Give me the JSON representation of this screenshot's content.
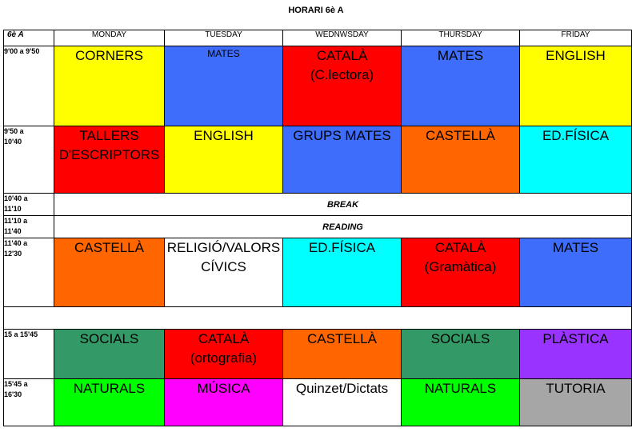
{
  "title": "HORARI 6è A",
  "class_label": "6è A",
  "days": [
    "MONDAY",
    "TUESDAY",
    "WEDNWSDAY",
    "THURSDAY",
    "FRIDAY"
  ],
  "colors": {
    "yellow": "#ffff00",
    "blue": "#3f6dfb",
    "red": "#ff0000",
    "orange": "#ff6600",
    "cyan": "#00ffff",
    "white": "#ffffff",
    "green": "#339966",
    "purple": "#9933ff",
    "lime": "#00ff00",
    "magenta": "#ff00ff",
    "gray": "#a6a6a6"
  },
  "rows": [
    {
      "time_top": "9'00 a  9'50",
      "time_bottom": "",
      "cells": [
        {
          "line1": "CORNERS",
          "line2": "",
          "color": "yellow"
        },
        {
          "line1": "MATES",
          "line2": "",
          "color": "blue",
          "small": true
        },
        {
          "line1": "CATALÀ",
          "line2": "(C.lectora)",
          "color": "red"
        },
        {
          "line1": "MATES",
          "line2": "",
          "color": "blue"
        },
        {
          "line1": "ENGLISH",
          "line2": "",
          "color": "yellow"
        }
      ]
    },
    {
      "time_top": "9'50 a",
      "time_bottom": "10'40",
      "cells": [
        {
          "line1": "TALLERS",
          "line2": "D'ESCRIPTORS",
          "color": "red"
        },
        {
          "line1": "ENGLISH",
          "line2": "",
          "color": "yellow"
        },
        {
          "line1": "GRUPS MATES",
          "line2": "",
          "color": "blue"
        },
        {
          "line1": "CASTELLÀ",
          "line2": "",
          "color": "orange"
        },
        {
          "line1": "ED.FÍSICA",
          "line2": "",
          "color": "cyan"
        }
      ]
    },
    {
      "time_top": "10'40 a",
      "time_bottom": "11'10",
      "span_text": "BREAK"
    },
    {
      "time_top": "11'10  a",
      "time_bottom": "11'40",
      "span_text": "READING"
    },
    {
      "time_top": "11'40 a",
      "time_bottom": "12'30",
      "cells": [
        {
          "line1": "CASTELLÀ",
          "line2": "",
          "color": "orange"
        },
        {
          "line1": "RELIGIÓ/VALORS",
          "line2": "CÍVICS",
          "color": "white"
        },
        {
          "line1": "ED.FÍSICA",
          "line2": "",
          "color": "cyan"
        },
        {
          "line1": "CATALÀ",
          "line2": "(Gramàtica)",
          "color": "red"
        },
        {
          "line1": "MATES",
          "line2": "",
          "color": "blue"
        }
      ]
    },
    {
      "empty": true
    },
    {
      "time_top": "15 a 15'45",
      "time_bottom": "",
      "cells": [
        {
          "line1": "SOCIALS",
          "line2": "",
          "color": "green"
        },
        {
          "line1": "CATALÀ",
          "line2": "(ortografia)",
          "color": "red"
        },
        {
          "line1": "CASTELLÀ",
          "line2": "",
          "color": "orange"
        },
        {
          "line1": "SOCIALS",
          "line2": "",
          "color": "green"
        },
        {
          "line1": "PLÀSTICA",
          "line2": "",
          "color": "purple"
        }
      ]
    },
    {
      "time_top": "15'45 a",
      "time_bottom": "16'30",
      "cells": [
        {
          "line1": "NATURALS",
          "line2": "",
          "color": "lime"
        },
        {
          "line1": "MÚSICA",
          "line2": "",
          "color": "magenta"
        },
        {
          "line1": "Quinzet/Dictats",
          "line2": "",
          "color": "white"
        },
        {
          "line1": "NATURALS",
          "line2": "",
          "color": "lime"
        },
        {
          "line1": "TUTORIA",
          "line2": "",
          "color": "gray"
        }
      ]
    }
  ]
}
